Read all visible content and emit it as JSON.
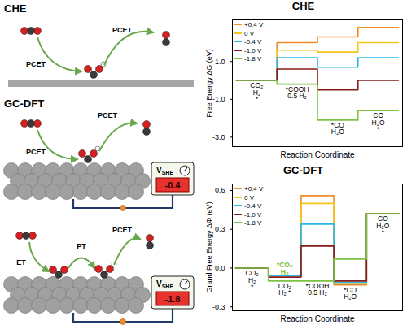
{
  "diagram": {
    "panels": [
      {
        "title": "CHE",
        "steps": [
          "PCET",
          "PCET"
        ]
      },
      {
        "title": "GC-DFT",
        "steps": [
          "PCET",
          "PCET"
        ],
        "potential": {
          "label": "V",
          "subscript": "SHE",
          "value": "-0.4"
        }
      },
      {
        "steps": [
          "ET",
          "PT",
          "PCET"
        ],
        "potential": {
          "label": "V",
          "subscript": "SHE",
          "value": "-1.8"
        }
      }
    ]
  },
  "chart_data": [
    {
      "type": "line",
      "title": "CHE",
      "x_label": "Reaction Coordinate",
      "y_label": "Free Energy ΔG (eV)",
      "categories": [
        "CO₂\nH₂\n*",
        "*COOH\n0.5 H₂",
        "*CO\nH₂O",
        "CO\nH₂O\n*"
      ],
      "series": [
        {
          "name": "+0.4 V",
          "color": "#f28c28",
          "values": [
            0,
            2.0,
            2.3,
            2.8
          ]
        },
        {
          "name": "0 V",
          "color": "#f5c518",
          "values": [
            0,
            1.6,
            1.5,
            2.0
          ]
        },
        {
          "name": "-0.4 V",
          "color": "#29b6e8",
          "values": [
            0,
            1.2,
            0.7,
            1.2
          ]
        },
        {
          "name": "-1.0 V",
          "color": "#8b1a1a",
          "values": [
            0,
            0.6,
            -0.5,
            0.0
          ]
        },
        {
          "name": "-1.8 V",
          "color": "#7dc242",
          "values": [
            0,
            -0.2,
            -2.1,
            -1.6
          ]
        }
      ],
      "ylim": [
        -3.5,
        3.2
      ],
      "yticks": [
        {
          "value": 1,
          "label": "1.0"
        },
        {
          "value": -1,
          "label": "-1.0"
        },
        {
          "value": -3,
          "label": "-3.0"
        }
      ],
      "legend": "top-left",
      "tick_labels": "y"
    },
    {
      "type": "line",
      "title": "GC-DFT",
      "x_label": "Reaction Coordinate",
      "y_label": "Grand Free Energy ΔΦ (eV)",
      "categories": [
        "CO₂\nH₂\n*",
        "CO₂\nH₂ *",
        "*COOH\n0.5 H₂",
        "*CO\nH₂O",
        "CO\nH₂O\n*"
      ],
      "series": [
        {
          "name": "+0.4 V",
          "color": "#f28c28",
          "values": [
            0,
            -0.06,
            0.56,
            -0.13,
            0.42
          ]
        },
        {
          "name": "0 V",
          "color": "#f5c518",
          "values": [
            0,
            -0.06,
            0.5,
            -0.12,
            0.42
          ]
        },
        {
          "name": "-0.4 V",
          "color": "#29b6e8",
          "values": [
            0,
            -0.06,
            0.34,
            -0.11,
            0.42
          ]
        },
        {
          "name": "-1.0 V",
          "color": "#8b1a1a",
          "values": [
            0,
            -0.07,
            0.17,
            -0.1,
            0.42
          ]
        },
        {
          "name": "-1.8 V",
          "color": "#7dc242",
          "values": [
            0,
            -0.1,
            -0.1,
            0.07,
            0.42
          ]
        }
      ],
      "annotations": [
        {
          "text": "*CO₂\nH₂",
          "series": "-1.8 V",
          "category": 1
        }
      ],
      "ylim": [
        -0.33,
        0.65
      ],
      "yticks": [
        0.6,
        0.3,
        {
          "value": 0,
          "label": "0.0"
        },
        -0.3
      ],
      "legend": "top-left",
      "tick_labels": "y"
    }
  ]
}
